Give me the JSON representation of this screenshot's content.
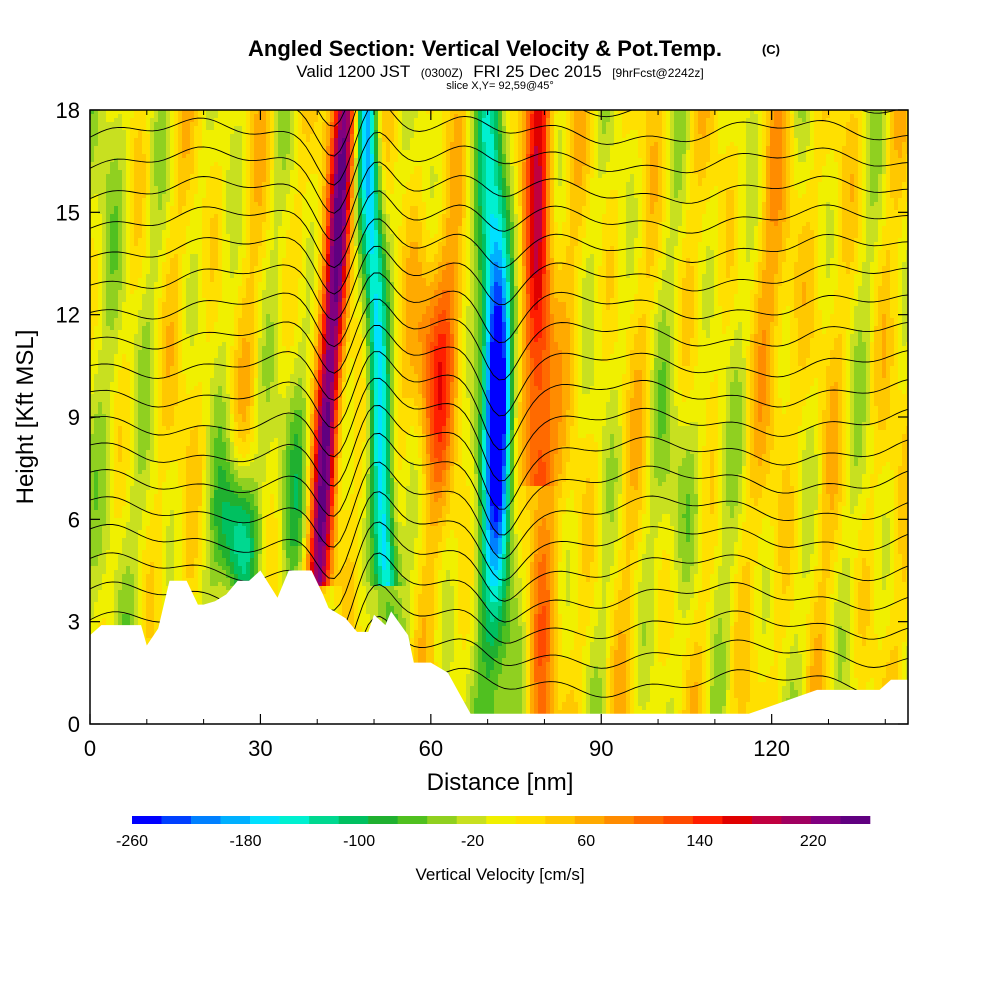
{
  "chart_data": {
    "type": "heatmap",
    "title": "Angled Section: Vertical Velocity & Pot.Temp.",
    "title_suffix": "(C)",
    "subtitle_main": "Valid 1200 JST",
    "subtitle_utc": "(0300Z)",
    "subtitle_date": "FRI 25 Dec 2015",
    "subtitle_fcst": "[9hrFcst@2242z]",
    "slice_label": "slice X,Y= 92,59@45°",
    "xlabel": "Distance [nm]",
    "ylabel": "Height [Kft MSL]",
    "xlim": [
      0,
      144
    ],
    "ylim": [
      0,
      18
    ],
    "x_ticks": [
      0,
      30,
      60,
      90,
      120
    ],
    "x_minor_ticks": [
      10,
      20,
      40,
      50,
      70,
      80,
      100,
      110,
      130,
      140
    ],
    "y_ticks": [
      0,
      3,
      6,
      9,
      12,
      15,
      18
    ],
    "colorbar": {
      "label": "Vertical Velocity [cm/s]",
      "tick_labels": [
        "-260",
        "-180",
        "-100",
        "-20",
        "60",
        "140",
        "220"
      ],
      "min": -260,
      "max": 260,
      "colors": [
        "#0000ff",
        "#0040ff",
        "#0080ff",
        "#00b0ff",
        "#00e0ff",
        "#00f0d0",
        "#00d890",
        "#00c060",
        "#20b030",
        "#50c020",
        "#90d020",
        "#c8e020",
        "#f0f000",
        "#ffe000",
        "#ffc800",
        "#ffaa00",
        "#ff8c00",
        "#ff6a00",
        "#ff4a00",
        "#ff1e00",
        "#e00000",
        "#c00040",
        "#a00060",
        "#800080",
        "#600080"
      ]
    },
    "updrafts": [
      {
        "x": 43,
        "strength": 230
      },
      {
        "x": 79,
        "strength": 160
      },
      {
        "x": 63,
        "strength": 120
      }
    ],
    "downdrafts": [
      {
        "x": 51,
        "strength": -190
      },
      {
        "x": 72,
        "strength": -230
      },
      {
        "x": 27,
        "strength": -150
      }
    ],
    "terrain": [
      [
        0,
        2.6
      ],
      [
        2,
        2.9
      ],
      [
        9,
        2.9
      ],
      [
        10,
        2.3
      ],
      [
        12,
        2.8
      ],
      [
        14,
        4.2
      ],
      [
        17,
        4.2
      ],
      [
        19,
        3.5
      ],
      [
        20,
        3.5
      ],
      [
        22,
        3.6
      ],
      [
        24,
        3.8
      ],
      [
        26,
        4.2
      ],
      [
        28,
        4.2
      ],
      [
        30,
        4.5
      ],
      [
        33,
        3.7
      ],
      [
        35,
        4.5
      ],
      [
        39,
        4.5
      ],
      [
        41,
        3.8
      ],
      [
        42,
        3.4
      ],
      [
        45,
        3.1
      ],
      [
        47,
        2.7
      ],
      [
        49,
        2.7
      ],
      [
        50,
        3.2
      ],
      [
        52,
        2.9
      ],
      [
        53,
        3.3
      ],
      [
        56,
        2.6
      ],
      [
        57,
        1.8
      ],
      [
        60,
        1.8
      ],
      [
        63,
        1.5
      ],
      [
        65,
        0.9
      ],
      [
        67,
        0.3
      ],
      [
        85,
        0.3
      ],
      [
        90,
        0.3
      ],
      [
        116,
        0.3
      ],
      [
        128,
        1.0
      ],
      [
        139,
        1.0
      ],
      [
        141,
        1.3
      ],
      [
        144,
        1.3
      ]
    ]
  }
}
